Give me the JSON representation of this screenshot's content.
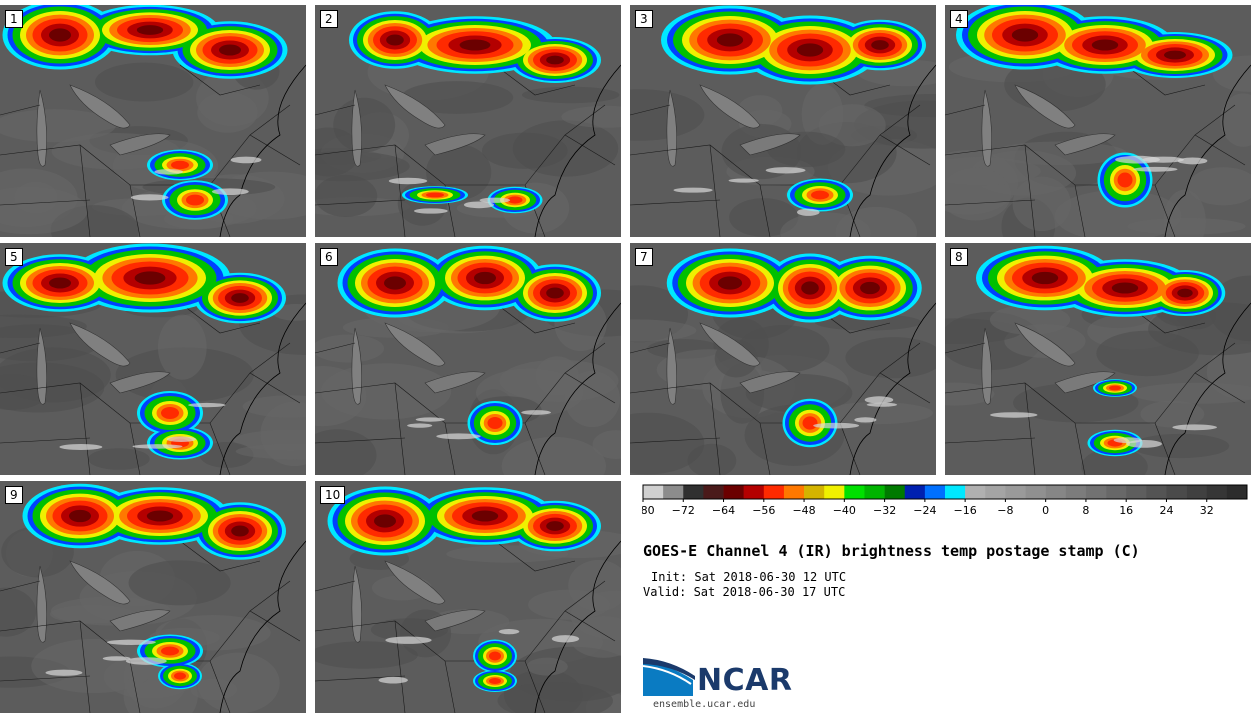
{
  "panels": [
    {
      "label": "1"
    },
    {
      "label": "2"
    },
    {
      "label": "3"
    },
    {
      "label": "4"
    },
    {
      "label": "5"
    },
    {
      "label": "6"
    },
    {
      "label": "7"
    },
    {
      "label": "8"
    },
    {
      "label": "9"
    },
    {
      "label": "10"
    }
  ],
  "title": "GOES-E Channel 4 (IR) brightness temp postage stamp (C)",
  "init": "Init: Sat 2018-06-30 12 UTC",
  "valid": "Valid: Sat 2018-06-30 17 UTC",
  "logo": {
    "text": "NCAR",
    "site": "ensemble.ucar.edu"
  },
  "colorbar": {
    "min": -80,
    "max": 40,
    "step": 4,
    "ticks": [
      -80,
      -72,
      -64,
      -56,
      -48,
      -40,
      -32,
      -24,
      -16,
      -8,
      0,
      8,
      16,
      24,
      32
    ],
    "colors": [
      "#d0d0d0",
      "#8c8c8c",
      "#303030",
      "#4a1a1a",
      "#6b0000",
      "#b40000",
      "#ff2a00",
      "#ff7800",
      "#d4b400",
      "#f0f000",
      "#00e000",
      "#00b400",
      "#007a00",
      "#0020b0",
      "#0070ff",
      "#00e8ff",
      "#b0b0b0",
      "#a4a4a4",
      "#9a9a9a",
      "#909090",
      "#868686",
      "#7c7c7c",
      "#727272",
      "#686868",
      "#5e5e5e",
      "#545454",
      "#4a4a4a",
      "#404040",
      "#363636",
      "#2c2c2c"
    ]
  }
}
